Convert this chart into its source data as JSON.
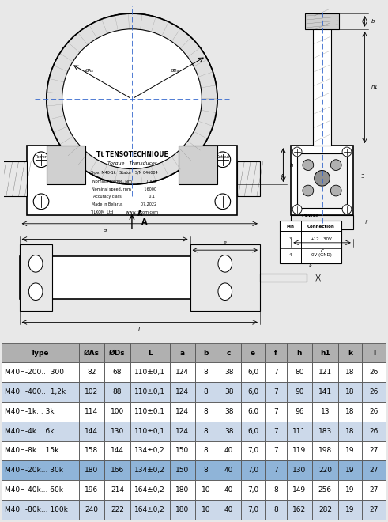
{
  "bg_color": "#e8e8e8",
  "table_header": [
    "Type",
    "ØAs",
    "ØDs",
    "L",
    "a",
    "b",
    "c",
    "e",
    "f",
    "h",
    "h1",
    "k",
    "l"
  ],
  "table_rows": [
    [
      "M40H-200... 300",
      "82",
      "68",
      "110±0,1",
      "124",
      "8",
      "38",
      "6,0",
      "7",
      "80",
      "121",
      "18",
      "26"
    ],
    [
      "M40H-400... 1,2k",
      "102",
      "88",
      "110±0,1",
      "124",
      "8",
      "38",
      "6,0",
      "7",
      "90",
      "141",
      "18",
      "26"
    ],
    [
      "M40H-1k... 3k",
      "114",
      "100",
      "110±0,1",
      "124",
      "8",
      "38",
      "6,0",
      "7",
      "96",
      "13",
      "18",
      "26"
    ],
    [
      "M40H-4k... 6k",
      "144",
      "130",
      "110±0,1",
      "124",
      "8",
      "38",
      "6,0",
      "7",
      "111",
      "183",
      "18",
      "26"
    ],
    [
      "M40H-8k... 15k",
      "158",
      "144",
      "134±0,2",
      "150",
      "8",
      "40",
      "7,0",
      "7",
      "119",
      "198",
      "19",
      "27"
    ],
    [
      "M40H-20k... 30k",
      "180",
      "166",
      "134±0,2",
      "150",
      "8",
      "40",
      "7,0",
      "7",
      "130",
      "220",
      "19",
      "27"
    ],
    [
      "M40H-40k... 60k",
      "196",
      "214",
      "164±0,2",
      "180",
      "10",
      "40",
      "7,0",
      "8",
      "149",
      "256",
      "19",
      "27"
    ],
    [
      "M40H-80k... 100k",
      "240",
      "222",
      "164±0,2",
      "180",
      "10",
      "40",
      "7,0",
      "8",
      "162",
      "282",
      "19",
      "27"
    ]
  ],
  "header_bg": "#b0b0b0",
  "row_bg_even": "#ccd9ea",
  "row_bg_odd": "#ffffff",
  "row_bg_highlight": "#8fb4d8",
  "highlight_row": 5,
  "border_color": "#555555",
  "text_color": "#000000",
  "drawing_bg": "#ffffff",
  "pin_table_rows": [
    [
      "3",
      "+12...30V"
    ],
    [
      "4",
      "0V (GND)"
    ]
  ]
}
